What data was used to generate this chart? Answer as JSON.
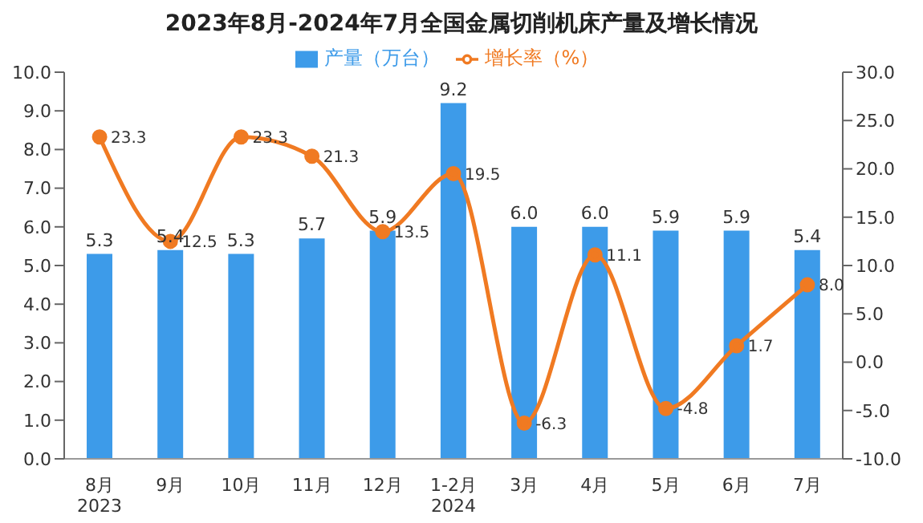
{
  "chart_data": {
    "type": "bar",
    "title": "2023年8月-2024年7月全国金属切削机床产量及增长情况",
    "categories": [
      "8月\n2023",
      "9月",
      "10月",
      "11月",
      "12月",
      "1-2月\n2024",
      "3月",
      "4月",
      "5月",
      "6月",
      "7月"
    ],
    "series": [
      {
        "name": "产量（万台）",
        "color": "#3d9be9",
        "values": [
          5.3,
          5.4,
          5.3,
          5.7,
          5.9,
          9.2,
          6.0,
          6.0,
          5.9,
          5.9,
          5.4
        ],
        "value_labels": [
          "5.3",
          "5.4",
          "5.3",
          "5.7",
          "5.9",
          "9.2",
          "6.0",
          "6.0",
          "5.9",
          "5.9",
          "5.4"
        ]
      },
      {
        "name": "增长率（%）",
        "type": "line",
        "axis": "y2",
        "color": "#f07a22",
        "marker": "circle",
        "values": [
          23.3,
          12.5,
          23.3,
          21.3,
          13.5,
          19.5,
          -6.3,
          11.1,
          -4.8,
          1.7,
          8.0
        ],
        "value_labels": [
          "23.3",
          "12.5",
          "23.3",
          "21.3",
          "13.5",
          "19.5",
          "-6.3",
          "11.1",
          "-4.8",
          "1.7",
          "8.0"
        ]
      }
    ],
    "ylim": [
      0,
      10
    ],
    "yticks": [
      {
        "value": 0,
        "label": "0.0"
      },
      {
        "value": 1,
        "label": "1.0"
      },
      {
        "value": 2,
        "label": "2.0"
      },
      {
        "value": 3,
        "label": "3.0"
      },
      {
        "value": 4,
        "label": "4.0"
      },
      {
        "value": 5,
        "label": "5.0"
      },
      {
        "value": 6,
        "label": "6.0"
      },
      {
        "value": 7,
        "label": "7.0"
      },
      {
        "value": 8,
        "label": "8.0"
      },
      {
        "value": 9,
        "label": "9.0"
      },
      {
        "value": 10,
        "label": "10.0"
      }
    ],
    "y2lim": [
      -10,
      30
    ],
    "y2ticks": [
      {
        "value": -10,
        "label": "-10.0"
      },
      {
        "value": -5,
        "label": "-5.0"
      },
      {
        "value": 0,
        "label": "0.0"
      },
      {
        "value": 5,
        "label": "5.0"
      },
      {
        "value": 10,
        "label": "10.0"
      },
      {
        "value": 15,
        "label": "15.0"
      },
      {
        "value": 20,
        "label": "20.0"
      },
      {
        "value": 25,
        "label": "25.0"
      },
      {
        "value": 30,
        "label": "30.0"
      }
    ],
    "legend": "top",
    "grid": false
  }
}
